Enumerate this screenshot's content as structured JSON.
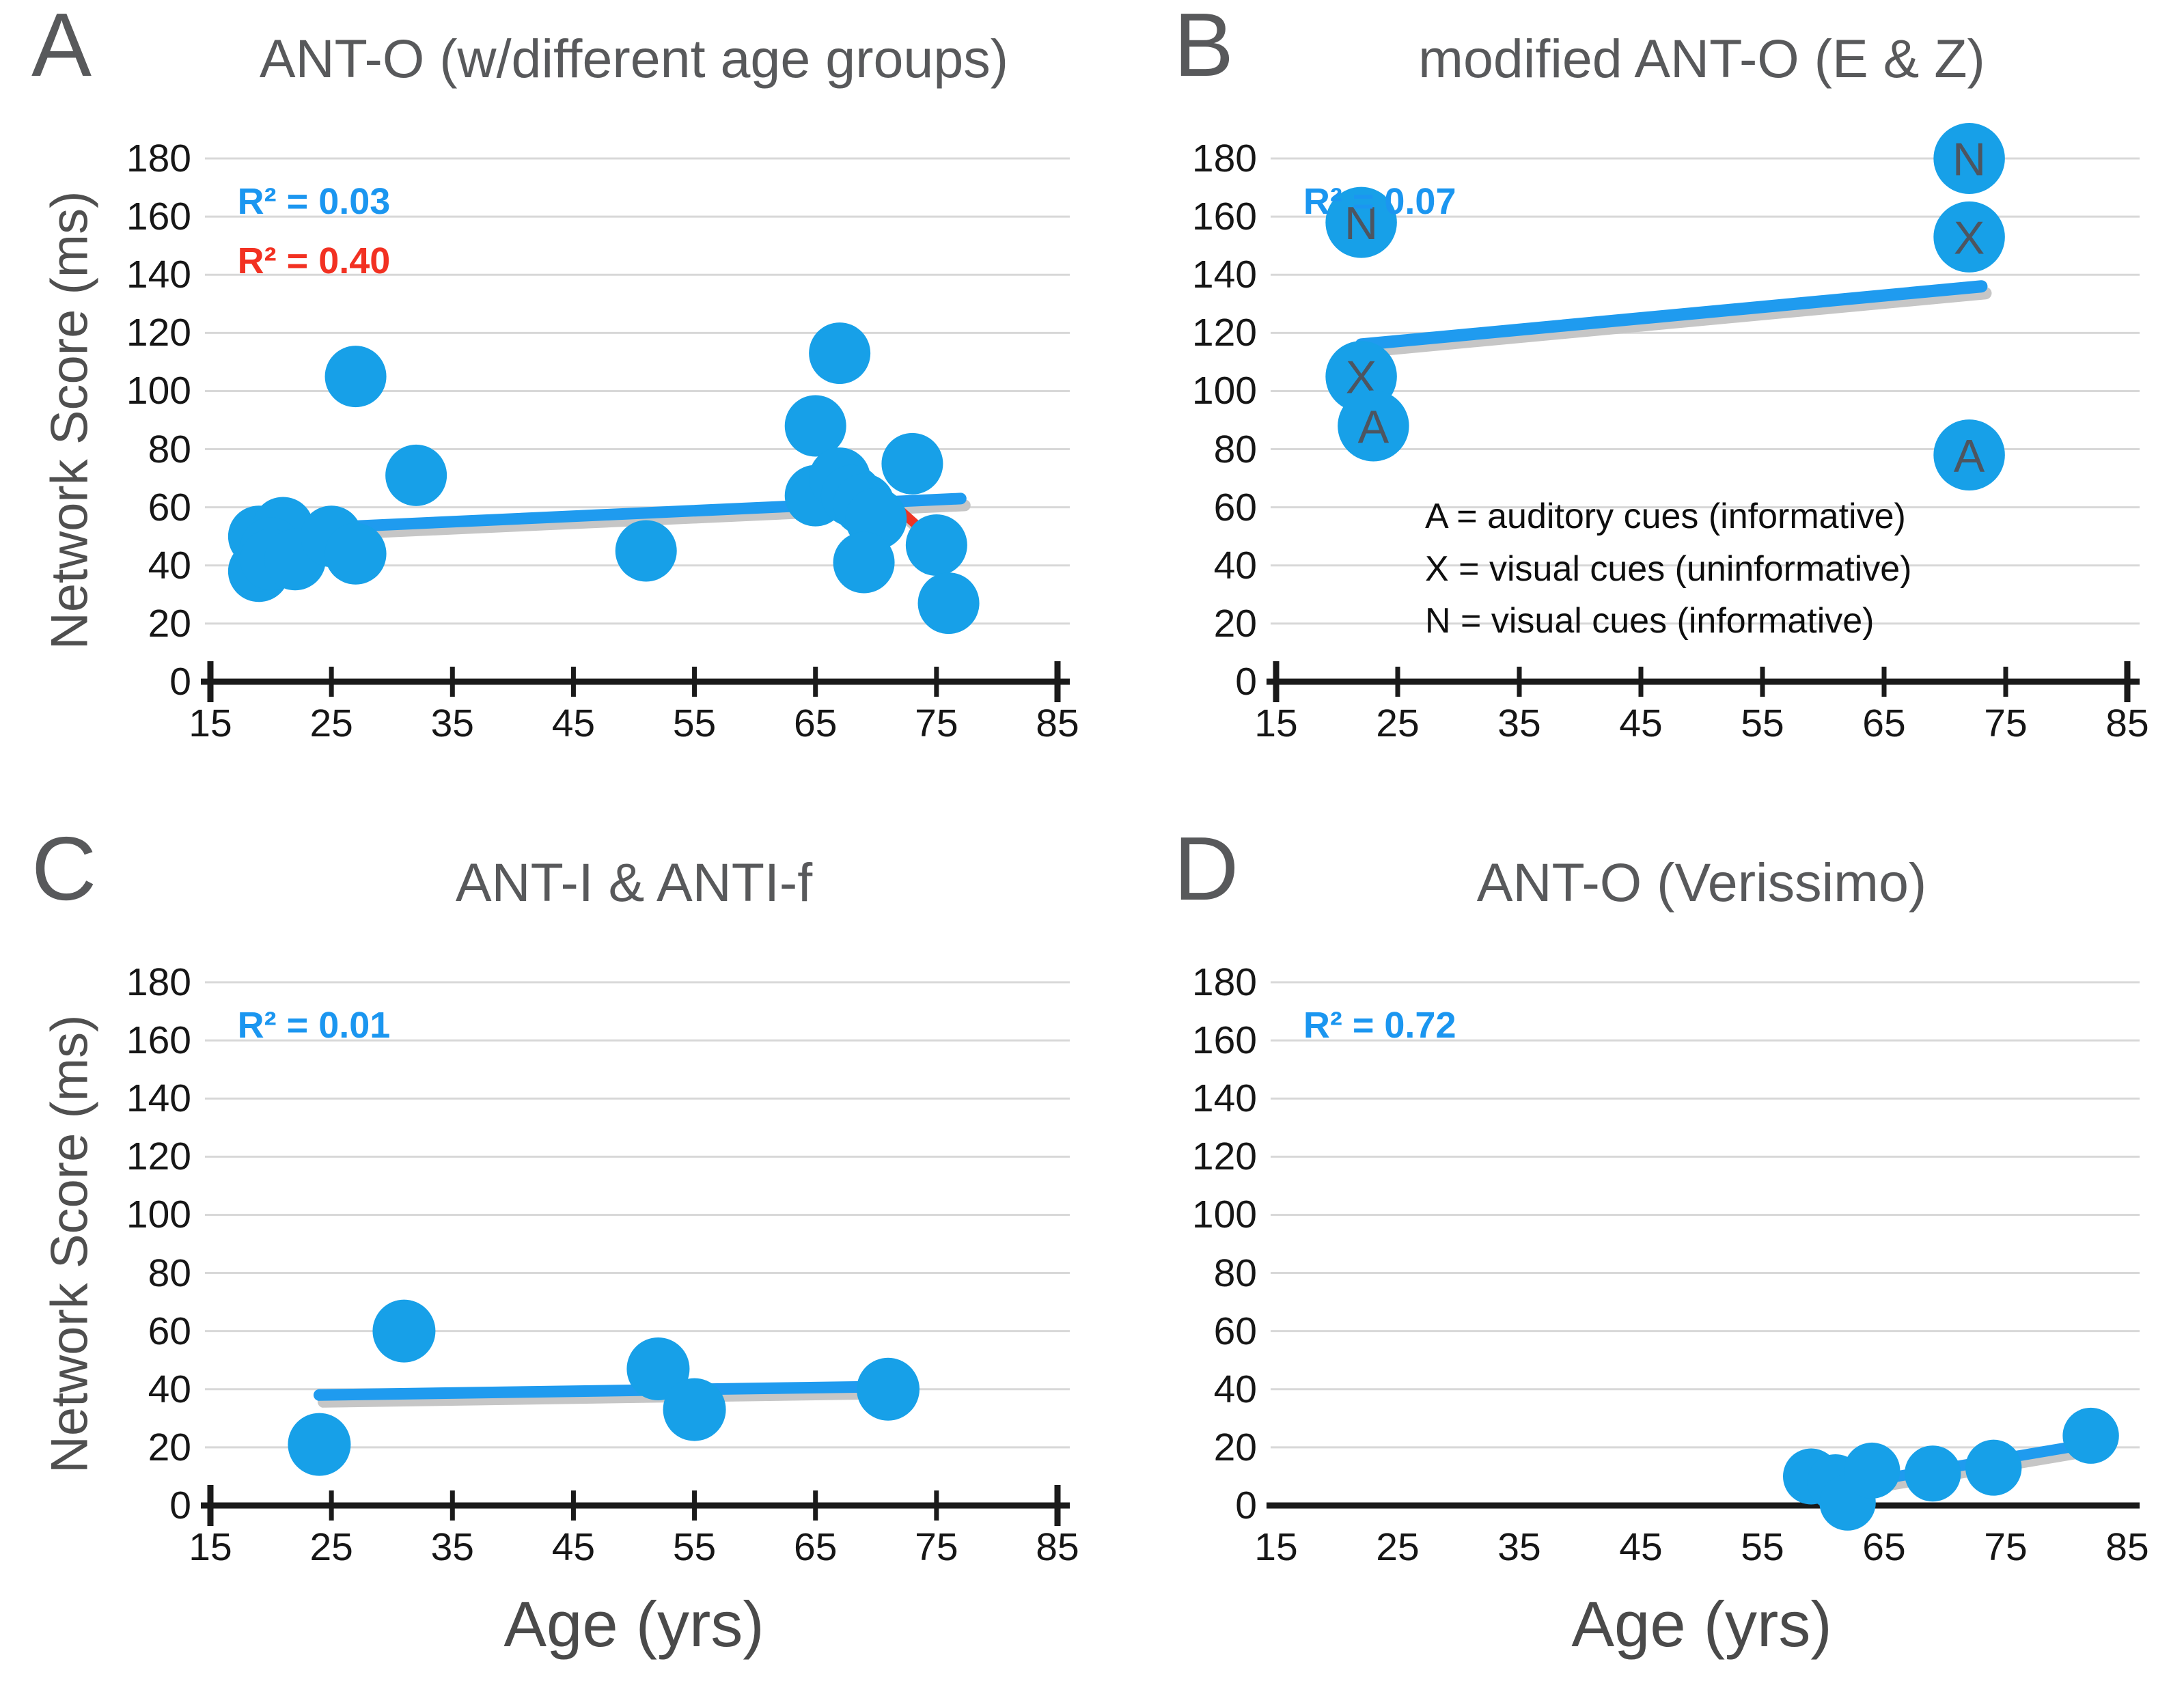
{
  "figure": {
    "y_axis_label": "Network Score (ms)",
    "x_axis_label": "Age (yrs)",
    "colors": {
      "dot_blue": "#17A0E8",
      "trend_blue": "#1F9BEF",
      "trend_red": "#EE3424",
      "trend_shadow": "#C6C6C6",
      "r2_blue": "#1B96F0",
      "r2_red": "#F23122",
      "grid_gray": "#D8D8D8",
      "axis_black": "#1A1A1A",
      "heading_gray": "#58595B",
      "dot_letter": "#4D5560"
    }
  },
  "chart_data": [
    {
      "panel": "A",
      "title": "ANT-O (w/different age groups)",
      "type": "scatter",
      "xlabel": "",
      "ylabel": "Network Score (ms)",
      "xlim": [
        15,
        85
      ],
      "ylim": [
        0,
        180
      ],
      "x_ticks": [
        15,
        25,
        35,
        45,
        55,
        65,
        75,
        85
      ],
      "y_ticks": [
        0,
        20,
        40,
        60,
        80,
        100,
        120,
        140,
        160,
        180
      ],
      "grid": true,
      "axis_tick_marks": true,
      "dot_radius": 45,
      "annotations": [
        {
          "text": "R² = 0.03",
          "color_key": "r2_blue"
        },
        {
          "text": "R² = 0.40",
          "color_key": "r2_red"
        }
      ],
      "trendlines": [
        {
          "color_key": "trend_blue",
          "from": [
            19,
            52
          ],
          "to": [
            77,
            63
          ],
          "width": 17
        },
        {
          "color_key": "trend_red",
          "from": [
            65,
            85
          ],
          "to": [
            76,
            44
          ],
          "width": 14
        }
      ],
      "points": [
        {
          "x": 19,
          "y": 50
        },
        {
          "x": 21,
          "y": 53
        },
        {
          "x": 20,
          "y": 46
        },
        {
          "x": 19,
          "y": 38
        },
        {
          "x": 20,
          "y": 42
        },
        {
          "x": 22,
          "y": 42
        },
        {
          "x": 25,
          "y": 50
        },
        {
          "x": 27,
          "y": 44
        },
        {
          "x": 27,
          "y": 105
        },
        {
          "x": 32,
          "y": 71
        },
        {
          "x": 51,
          "y": 45
        },
        {
          "x": 65,
          "y": 88
        },
        {
          "x": 65,
          "y": 64
        },
        {
          "x": 67,
          "y": 113
        },
        {
          "x": 67,
          "y": 70
        },
        {
          "x": 68,
          "y": 64
        },
        {
          "x": 69,
          "y": 61
        },
        {
          "x": 70,
          "y": 56
        },
        {
          "x": 69,
          "y": 41
        },
        {
          "x": 73,
          "y": 75
        },
        {
          "x": 75,
          "y": 47
        },
        {
          "x": 76,
          "y": 27
        }
      ]
    },
    {
      "panel": "B",
      "title": "modified ANT-O (E & Z)",
      "type": "scatter",
      "xlabel": "",
      "ylabel": "",
      "xlim": [
        15,
        85
      ],
      "ylim": [
        0,
        180
      ],
      "x_ticks": [
        15,
        25,
        35,
        45,
        55,
        65,
        75,
        85
      ],
      "y_ticks": [
        0,
        20,
        40,
        60,
        80,
        100,
        120,
        140,
        160,
        180
      ],
      "grid": true,
      "axis_tick_marks": true,
      "dot_radius": 52,
      "annotations": [
        {
          "text": "R² = 0.07",
          "color_key": "r2_blue"
        }
      ],
      "legend_lines": [
        "A = auditory cues (informative)",
        "X = visual cues (uninformative)",
        "N = visual cues (informative)"
      ],
      "trendlines": [
        {
          "color_key": "trend_blue",
          "from": [
            22,
            116
          ],
          "to": [
            73,
            136
          ],
          "width": 18
        }
      ],
      "points": [
        {
          "x": 22,
          "y": 158,
          "label": "N"
        },
        {
          "x": 22,
          "y": 105,
          "label": "X"
        },
        {
          "x": 23,
          "y": 88,
          "label": "A"
        },
        {
          "x": 72,
          "y": 180,
          "label": "N"
        },
        {
          "x": 72,
          "y": 153,
          "label": "X"
        },
        {
          "x": 72,
          "y": 78,
          "label": "A"
        }
      ]
    },
    {
      "panel": "C",
      "title": "ANT-I & ANTI-f",
      "type": "scatter",
      "xlabel": "Age (yrs)",
      "ylabel": "Network Score (ms)",
      "xlim": [
        15,
        85
      ],
      "ylim": [
        0,
        180
      ],
      "x_ticks": [
        15,
        25,
        35,
        45,
        55,
        65,
        75,
        85
      ],
      "y_ticks": [
        0,
        20,
        40,
        60,
        80,
        100,
        120,
        140,
        160,
        180
      ],
      "grid": true,
      "axis_tick_marks": true,
      "dot_radius": 46,
      "annotations": [
        {
          "text": "R² = 0.01",
          "color_key": "r2_blue"
        }
      ],
      "trendlines": [
        {
          "color_key": "trend_blue",
          "from": [
            24,
            38
          ],
          "to": [
            72,
            41
          ],
          "width": 17
        }
      ],
      "points": [
        {
          "x": 24,
          "y": 21
        },
        {
          "x": 31,
          "y": 60
        },
        {
          "x": 52,
          "y": 47
        },
        {
          "x": 55,
          "y": 33
        },
        {
          "x": 71,
          "y": 40
        }
      ]
    },
    {
      "panel": "D",
      "title": "ANT-O (Verissimo)",
      "type": "scatter",
      "xlabel": "Age (yrs)",
      "ylabel": "",
      "xlim": [
        15,
        85
      ],
      "ylim": [
        0,
        180
      ],
      "x_ticks": [
        15,
        25,
        35,
        45,
        55,
        65,
        75,
        85
      ],
      "y_ticks": [
        0,
        20,
        40,
        60,
        80,
        100,
        120,
        140,
        160,
        180
      ],
      "grid": true,
      "axis_tick_marks": false,
      "dot_radius": 41,
      "annotations": [
        {
          "text": "R² = 0.72",
          "color_key": "r2_blue"
        }
      ],
      "trendlines": [
        {
          "color_key": "trend_blue",
          "from": [
            59,
            5
          ],
          "to": [
            83,
            22
          ],
          "width": 16
        }
      ],
      "points": [
        {
          "x": 59,
          "y": 10
        },
        {
          "x": 61,
          "y": 8
        },
        {
          "x": 62,
          "y": 1
        },
        {
          "x": 64,
          "y": 12
        },
        {
          "x": 69,
          "y": 11
        },
        {
          "x": 74,
          "y": 13
        },
        {
          "x": 82,
          "y": 24
        }
      ]
    }
  ]
}
